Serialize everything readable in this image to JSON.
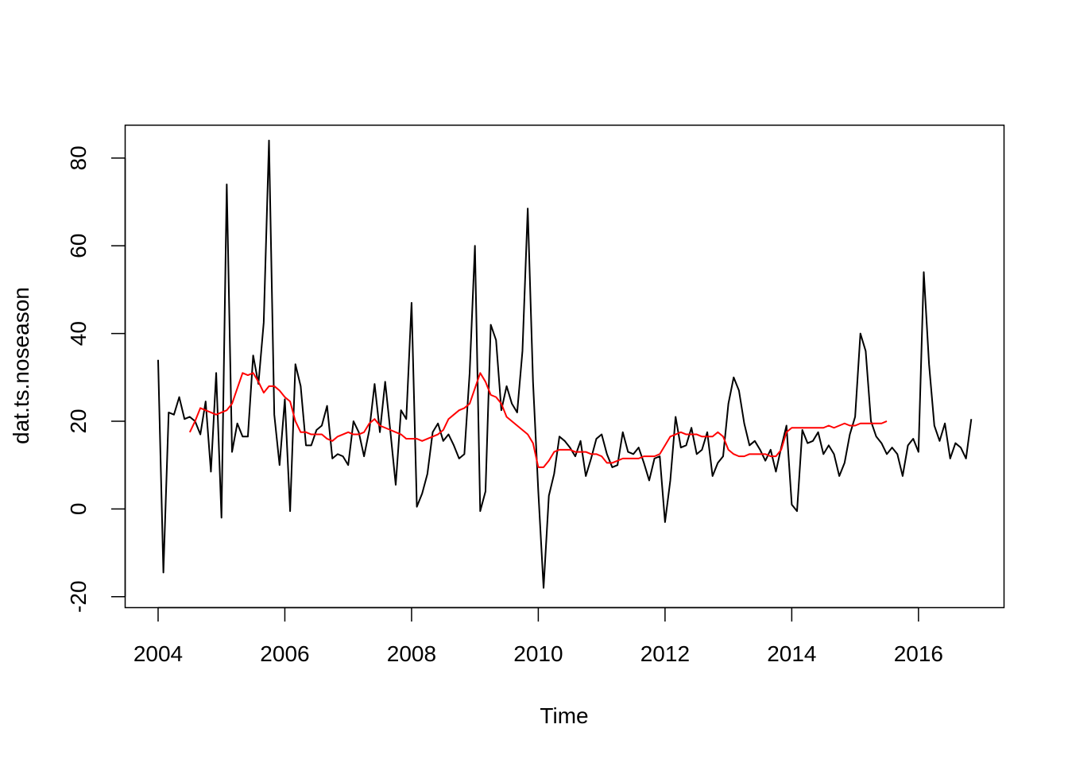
{
  "chart_data": {
    "type": "line",
    "title": "",
    "xlabel": "Time",
    "ylabel": "dat.ts.noseason",
    "xlim": [
      2003.48,
      2017.35
    ],
    "ylim": [
      -22.5,
      87.5
    ],
    "x_ticks": [
      "2004",
      "2006",
      "2008",
      "2010",
      "2012",
      "2014",
      "2016"
    ],
    "x_tick_values": [
      2004,
      2006,
      2008,
      2010,
      2012,
      2014,
      2016
    ],
    "y_ticks": [
      "-20",
      "0",
      "20",
      "40",
      "60",
      "80"
    ],
    "y_tick_values": [
      -20,
      0,
      20,
      40,
      60,
      80
    ],
    "grid": false,
    "legend": "none",
    "colors": {
      "series": "#000000",
      "trend": "#ff0000",
      "frame": "#000000"
    },
    "series": [
      {
        "start": 2004.0,
        "step": 0.0833333,
        "color": "#000000",
        "values": [
          34,
          -14.5,
          22,
          21.5,
          25.5,
          20.5,
          21,
          20,
          17,
          24.5,
          8.5,
          31,
          -2,
          74,
          13,
          19.5,
          16.5,
          16.5,
          35,
          28.5,
          42.5,
          84,
          21.5,
          10,
          25,
          -0.5,
          33,
          28,
          14.5,
          14.5,
          18,
          19,
          23.5,
          11.5,
          12.5,
          12,
          10,
          20,
          17.5,
          12,
          18,
          28.5,
          17.5,
          29,
          17.5,
          5.5,
          22.5,
          20.5,
          47,
          0.5,
          3.5,
          8,
          17.5,
          19.5,
          15.5,
          17,
          14.5,
          11.5,
          12.5,
          31,
          60,
          -0.5,
          4,
          42,
          38.5,
          22.5,
          28,
          24,
          22,
          36,
          68.5,
          29,
          4,
          -18,
          3,
          8,
          16.5,
          15.5,
          14,
          12,
          15.5,
          7.5,
          11.5,
          16,
          17,
          12.5,
          9.5,
          10,
          17.5,
          13,
          12.5,
          14,
          10.5,
          6.5,
          11.5,
          12,
          -3,
          6.5,
          21,
          14,
          14.5,
          18.5,
          12.5,
          13.5,
          17.5,
          7.5,
          10.5,
          12,
          24,
          30,
          27,
          19.5,
          14.5,
          15.5,
          13.5,
          11,
          13.5,
          8.5,
          14,
          19,
          1,
          -0.5,
          18,
          15,
          15.5,
          17.5,
          12.5,
          14.5,
          12.5,
          7.5,
          10.5,
          17,
          21,
          40,
          36,
          20,
          16.5,
          15,
          12.5,
          14,
          12.5,
          7.5,
          14.5,
          16,
          13,
          54,
          33,
          19,
          15.5,
          19.5,
          11.5,
          15,
          14,
          11.5,
          20.5
        ]
      },
      {
        "start": 2004.5,
        "step": 0.0833333,
        "color": "#ff0000",
        "values": [
          17.5,
          20,
          23,
          22.5,
          22,
          21.5,
          22,
          22.5,
          24,
          27.5,
          31,
          30.5,
          31,
          29,
          26.5,
          28,
          28,
          27,
          25.5,
          24.5,
          20,
          17.5,
          17.5,
          17,
          17,
          17,
          16,
          15.5,
          16.5,
          17,
          17.5,
          17,
          17,
          17.5,
          19.5,
          20.5,
          19,
          18.5,
          18,
          17.5,
          17,
          16,
          16,
          16,
          15.5,
          16,
          16.5,
          17,
          18,
          20.5,
          21.5,
          22.5,
          23,
          24,
          27.5,
          31,
          29,
          26,
          25.5,
          24,
          21,
          20,
          19,
          18,
          17,
          15,
          9.5,
          9.5,
          11,
          13,
          13.5,
          13.5,
          13.5,
          13,
          13,
          13,
          12.5,
          12.5,
          12,
          10.5,
          10.5,
          11,
          11.5,
          11.5,
          11.5,
          11.5,
          12,
          12,
          12,
          12.5,
          14.5,
          16.5,
          17,
          17.5,
          17,
          17,
          17,
          16.5,
          16.5,
          16.5,
          17.5,
          16.5,
          13.5,
          12.5,
          12,
          12,
          12.5,
          12.5,
          12.5,
          12.5,
          12,
          12,
          13.5,
          17.5,
          18.5,
          18.5,
          18.5,
          18.5,
          18.5,
          18.5,
          18.5,
          19,
          18.5,
          19,
          19.5,
          19,
          19,
          19.5,
          19.5,
          19.5,
          19.5,
          19.5,
          20
        ]
      }
    ]
  }
}
